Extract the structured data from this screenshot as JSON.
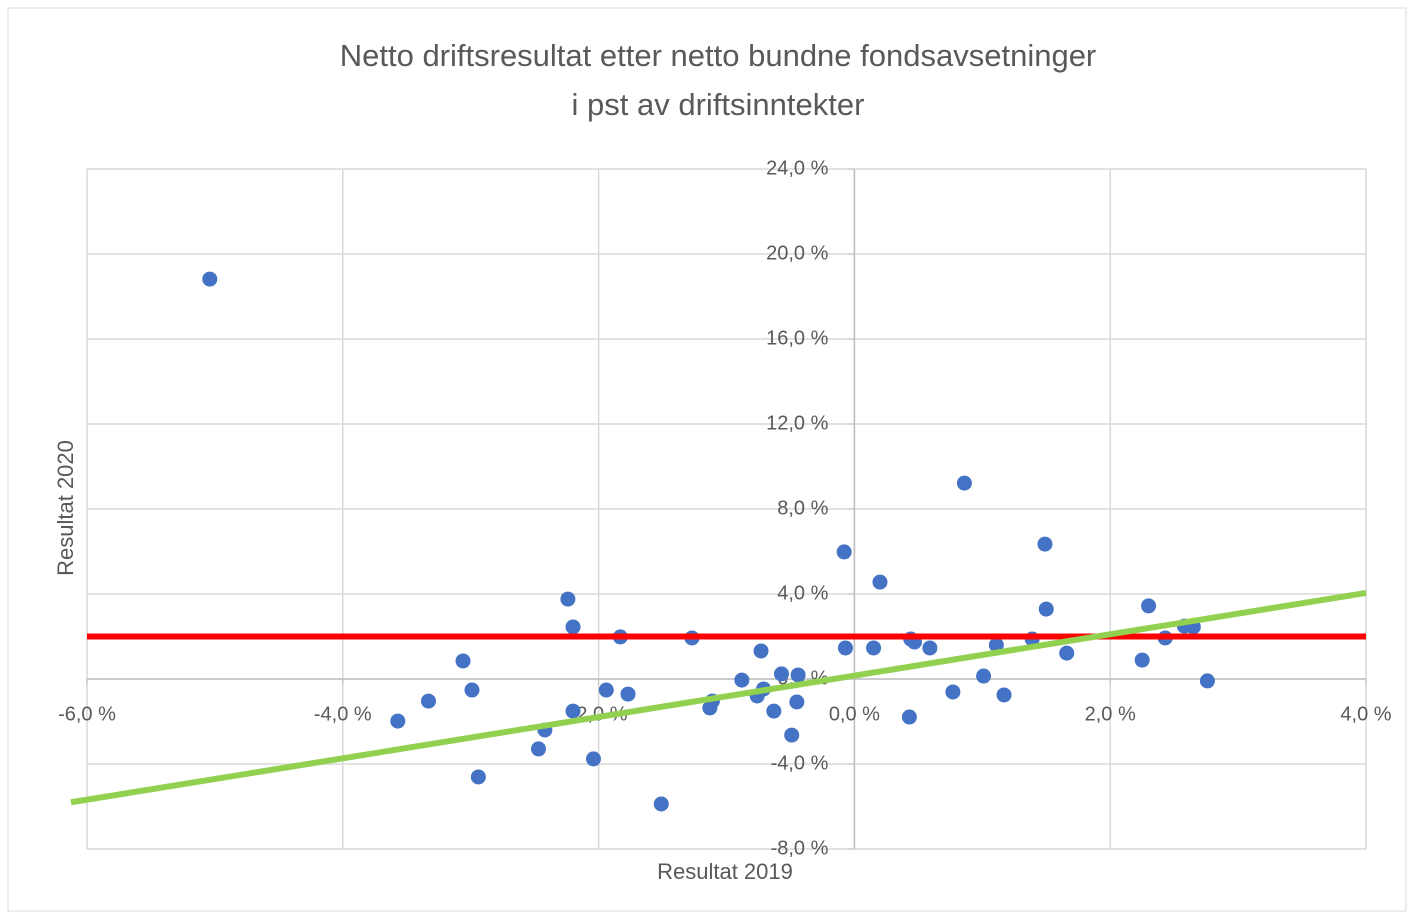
{
  "chart_data": {
    "type": "scatter",
    "title": [
      "Netto driftsresultat etter netto bundne fondsavsetninger",
      "i pst av driftsinntekter"
    ],
    "x_label": "Resultat 2019",
    "y_label": "Resultat 2020",
    "xlim": [
      -6,
      4
    ],
    "ylim": [
      -8,
      24
    ],
    "xticks": [
      {
        "value": -6,
        "label": "-6,0 %"
      },
      {
        "value": -4,
        "label": "-4,0 %"
      },
      {
        "value": -2,
        "label": "-2,0 %"
      },
      {
        "value": 0,
        "label": "0,0 %"
      },
      {
        "value": 2,
        "label": "2,0 %"
      },
      {
        "value": 4,
        "label": "4,0 %"
      }
    ],
    "yticks": [
      {
        "value": -8,
        "label": "-8,0 %"
      },
      {
        "value": -4,
        "label": "-4,0 %"
      },
      {
        "value": 0,
        "label": "0,0 %"
      },
      {
        "value": 4,
        "label": "4,0 %"
      },
      {
        "value": 8,
        "label": "8,0 %"
      },
      {
        "value": 12,
        "label": "12,0 %"
      },
      {
        "value": 16,
        "label": "16,0 %"
      },
      {
        "value": 20,
        "label": "20,0 %"
      },
      {
        "value": 24,
        "label": "24,0 %"
      }
    ],
    "grid": true,
    "series": [
      {
        "color": "#4472c4",
        "x": [
          -5.04,
          -3.57,
          -3.33,
          -3.06,
          -2.99,
          -2.94,
          -2.47,
          -2.42,
          -2.24,
          -2.2,
          -2.2,
          -2.04,
          -1.94,
          -1.83,
          -1.77,
          -1.51,
          -1.27,
          -1.13,
          -1.11,
          -0.88,
          -0.76,
          -0.73,
          -0.71,
          -0.63,
          -0.57,
          -0.49,
          -0.45,
          -0.44,
          -0.08,
          -0.07,
          0.15,
          0.2,
          0.43,
          0.44,
          0.47,
          0.59,
          0.77,
          0.86,
          1.01,
          1.11,
          1.17,
          1.39,
          1.49,
          1.5,
          1.66,
          2.25,
          2.3,
          2.43,
          2.58,
          2.65,
          2.76
        ],
        "y": [
          18.82,
          -1.98,
          -1.04,
          0.85,
          -0.52,
          -4.61,
          -3.29,
          -2.4,
          3.76,
          2.45,
          -1.51,
          -3.76,
          -0.52,
          1.98,
          -0.71,
          -5.88,
          1.93,
          -1.36,
          -1.04,
          -0.05,
          -0.8,
          1.32,
          -0.47,
          -1.51,
          0.24,
          -2.64,
          -1.08,
          0.19,
          5.98,
          1.46,
          1.46,
          4.56,
          -1.79,
          1.88,
          1.74,
          1.46,
          -0.61,
          9.22,
          0.14,
          1.6,
          -0.75,
          1.88,
          6.35,
          3.29,
          1.22,
          0.89,
          3.44,
          1.93,
          2.49,
          2.45,
          -0.09
        ]
      }
    ],
    "reference_lines": [
      {
        "color": "#ff0000",
        "y": 2
      }
    ],
    "trendline": {
      "color": "#92d050",
      "x": [
        -6,
        4
      ],
      "y": [
        -5.8,
        4.05
      ]
    }
  }
}
